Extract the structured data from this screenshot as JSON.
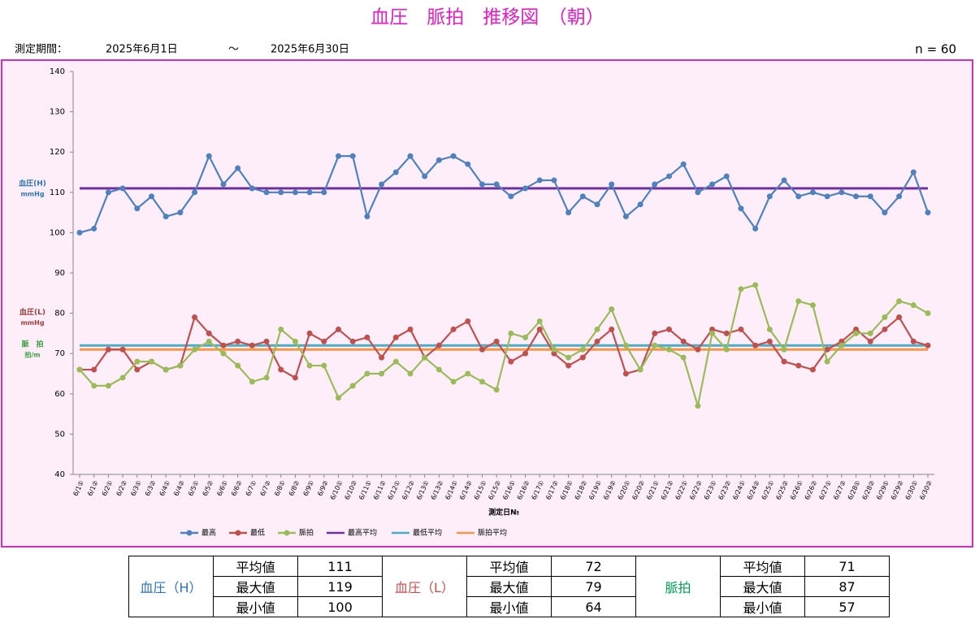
{
  "header": {
    "title": "血圧　脈拍　推移図　（朝）",
    "period_label": "測定期間：",
    "start": "2025年6月1日",
    "tilde": "～",
    "end": "2025年6月30日",
    "n": "n = 60"
  },
  "chart_data": {
    "type": "line",
    "x_label": "測定日№",
    "axis_labels": [
      {
        "lines": [
          "血圧(H)",
          "mmHg"
        ],
        "color": "#2e75b6",
        "value": 111
      },
      {
        "lines": [
          "血圧(L)",
          "mmHg"
        ],
        "color": "#a0403d",
        "value": 79
      },
      {
        "lines": [
          "脈　拍",
          "拍/m"
        ],
        "color": "#3aa040",
        "value": 71
      }
    ],
    "categories": [
      "6/1①",
      "6/1②",
      "6/2①",
      "6/2②",
      "6/3①",
      "6/3②",
      "6/4①",
      "6/4②",
      "6/5①",
      "6/5②",
      "6/6①",
      "6/6②",
      "6/7①",
      "6/7②",
      "6/8①",
      "6/8②",
      "6/9①",
      "6/9②",
      "6/10①",
      "6/10②",
      "6/11①",
      "6/11②",
      "6/12①",
      "6/12②",
      "6/13①",
      "6/13②",
      "6/14①",
      "6/14②",
      "6/15①",
      "6/15②",
      "6/16①",
      "6/16②",
      "6/17①",
      "6/17②",
      "6/18①",
      "6/18②",
      "6/19①",
      "6/19②",
      "6/20①",
      "6/20②",
      "6/21①",
      "6/21②",
      "6/22①",
      "6/22②",
      "6/23①",
      "6/23②",
      "6/24①",
      "6/24②",
      "6/25①",
      "6/25②",
      "6/26①",
      "6/26②",
      "6/27①",
      "6/27②",
      "6/28①",
      "6/28②",
      "6/29①",
      "6/29②",
      "6/30①",
      "6/30②"
    ],
    "series": [
      {
        "name": "最高",
        "color": "#4f81bd",
        "values": [
          100,
          101,
          110,
          111,
          106,
          109,
          104,
          105,
          110,
          119,
          112,
          116,
          111,
          110,
          110,
          110,
          110,
          110,
          119,
          119,
          104,
          112,
          115,
          119,
          114,
          118,
          119,
          117,
          112,
          112,
          109,
          111,
          113,
          113,
          105,
          109,
          107,
          112,
          104,
          107,
          112,
          114,
          117,
          110,
          112,
          114,
          106,
          101,
          109,
          113,
          109,
          110,
          109,
          110,
          109,
          109,
          105,
          109,
          115,
          105
        ]
      },
      {
        "name": "最低",
        "color": "#c0504d",
        "values": [
          66,
          66,
          71,
          71,
          66,
          68,
          66,
          67,
          79,
          75,
          72,
          73,
          72,
          73,
          66,
          64,
          75,
          73,
          76,
          73,
          74,
          69,
          74,
          76,
          69,
          72,
          76,
          78,
          71,
          73,
          68,
          70,
          76,
          70,
          67,
          69,
          73,
          76,
          65,
          66,
          75,
          76,
          73,
          71,
          76,
          75,
          76,
          72,
          73,
          68,
          67,
          66,
          71,
          73,
          76,
          73,
          76,
          79,
          73,
          72
        ]
      },
      {
        "name": "脈拍",
        "color": "#9bbb59",
        "values": [
          66,
          62,
          62,
          64,
          68,
          68,
          66,
          67,
          71,
          73,
          70,
          67,
          63,
          64,
          76,
          73,
          67,
          67,
          59,
          62,
          65,
          65,
          68,
          65,
          69,
          66,
          63,
          65,
          63,
          61,
          75,
          74,
          78,
          71,
          69,
          71,
          76,
          81,
          72,
          66,
          72,
          71,
          69,
          57,
          75,
          71,
          86,
          87,
          76,
          71,
          83,
          82,
          68,
          72,
          75,
          75,
          79,
          83,
          82,
          80
        ]
      },
      {
        "name": "最高平均",
        "color": "#7030a0",
        "value": 111
      },
      {
        "name": "最低平均",
        "color": "#4bacc6",
        "value": 72
      },
      {
        "name": "脈拍平均",
        "color": "#f79646",
        "value": 71
      }
    ],
    "ylim": [
      40,
      140
    ],
    "yticks": [
      40,
      50,
      60,
      70,
      80,
      90,
      100,
      110,
      120,
      130,
      140
    ],
    "grid": false,
    "legend": "bottom"
  },
  "stats_table": {
    "groups": [
      {
        "name": "血圧（H）",
        "color": "#2e75b6",
        "rows": [
          [
            "平均値",
            111
          ],
          [
            "最大値",
            119
          ],
          [
            "最小値",
            100
          ]
        ]
      },
      {
        "name": "血圧（L）",
        "color": "#c0504d",
        "rows": [
          [
            "平均値",
            72
          ],
          [
            "最大値",
            79
          ],
          [
            "最小値",
            64
          ]
        ]
      },
      {
        "name": "脈拍",
        "color": "#00a050",
        "rows": [
          [
            "平均値",
            71
          ],
          [
            "最大値",
            87
          ],
          [
            "最小値",
            57
          ]
        ]
      }
    ]
  }
}
